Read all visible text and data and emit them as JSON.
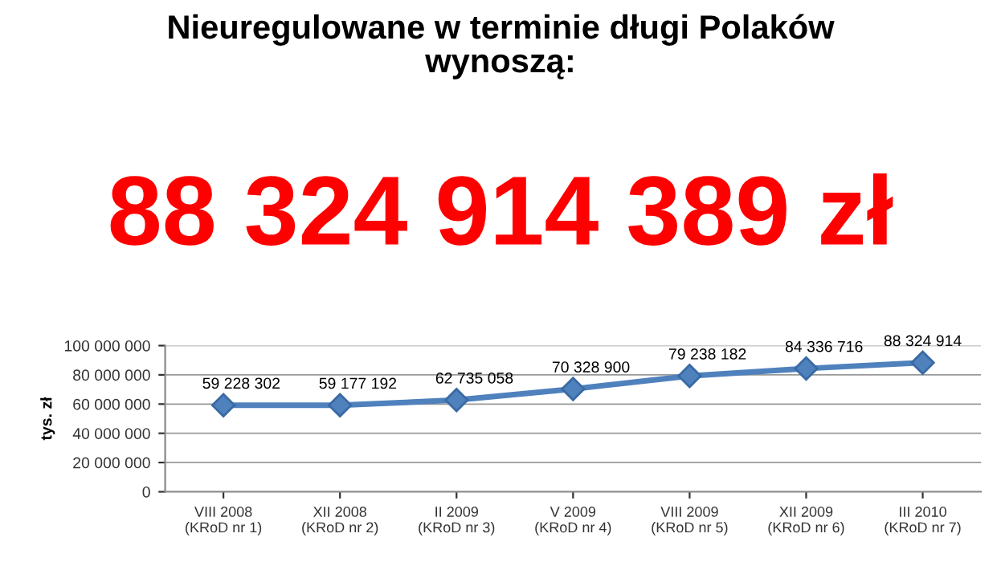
{
  "chart_data": {
    "type": "line",
    "title": "Nieuregulowane w terminie długi Polaków\nwynoszą:",
    "annotations": [
      "88 324 914 389 zł"
    ],
    "ylabel": "tys. zł",
    "categories": [
      "VIII 2008\n(KRoD nr 1)",
      "XII 2008\n(KRoD nr 2)",
      "II 2009\n(KRoD nr 3)",
      "V 2009\n(KRoD nr 4)",
      "VIII 2009\n(KRoD nr 5)",
      "XII 2009\n(KRoD nr 6)",
      "III 2010\n(KRoD nr 7)"
    ],
    "series": [
      {
        "color": "#4f81bd",
        "values": [
          59228302,
          59177192,
          62735058,
          70328900,
          79238182,
          84336716,
          88324914
        ]
      }
    ],
    "ylim": [
      0,
      100000000
    ],
    "yticks": [
      {
        "value": 0,
        "label": "0"
      },
      {
        "value": 20000000,
        "label": "20 000 000"
      },
      {
        "value": 40000000,
        "label": "40 000 000"
      },
      {
        "value": 60000000,
        "label": "60 000 000"
      },
      {
        "value": 80000000,
        "label": "80 000 000"
      },
      {
        "value": 100000000,
        "label": "100 000 000"
      }
    ],
    "grid": "y",
    "marker": "diamond",
    "line_style": "solid",
    "data_labels": true,
    "legend": false
  }
}
